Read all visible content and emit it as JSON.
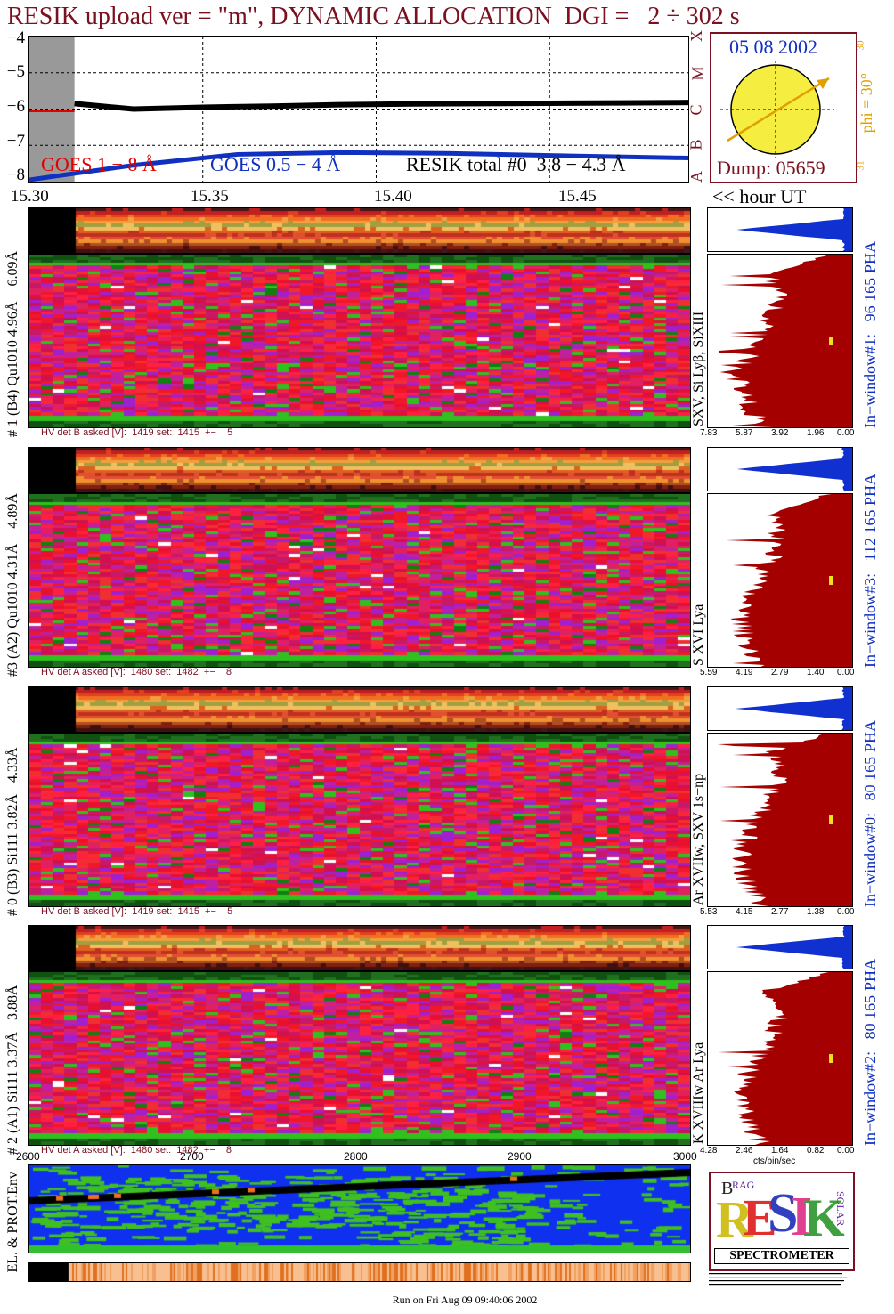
{
  "title": "RESIK upload ver = \"m\", DYNAMIC ALLOCATION  DGI =   2 ÷ 302 s",
  "goes": {
    "y_ticks": [
      "−4",
      "−5",
      "−6",
      "−7",
      "−8"
    ],
    "right_letters": [
      "X",
      "M",
      "C",
      "B",
      "A"
    ],
    "legend_goes_long": "GOES 1 − 8 Å",
    "legend_goes_short": "GOES 0.5 − 4 Å",
    "legend_resik": "RESIK total #0  3.8 − 4.3 Å"
  },
  "sun": {
    "date": "05 08 2002",
    "phi_label": "phi = 30°",
    "top_num": "30",
    "bottom_num": "31",
    "dump": "Dump: 05659"
  },
  "time_axis": {
    "ticks": [
      "15.30",
      "15.35",
      "15.40",
      "15.45"
    ],
    "label": "<< hour UT"
  },
  "channels": [
    {
      "left_label": "# 1 (B4) Qu1010 4.96Å − 6.09Å",
      "lines_label": "SXV, Si Lyβ, SiXIII",
      "window_label": "In−window#1:   96 165",
      "pha": "PHA",
      "hv": "HV det B asked [V]:  1419 set:  1415  +−    5",
      "x_ticks": [
        "7.83",
        "5.87",
        "3.92",
        "1.96",
        "0.00"
      ]
    },
    {
      "left_label": "#3 (A2) Qu1010  4.31Å − 4.89Å",
      "lines_label": "S XVI Lya",
      "window_label": "In−window#3:   112 165",
      "pha": "PHA",
      "hv": "HV det A asked [V]:  1480 set:  1482  +−    8",
      "x_ticks": [
        "5.59",
        "4.19",
        "2.79",
        "1.40",
        "0.00"
      ]
    },
    {
      "left_label": "# 0 (B3) Si111  3.82Å− 4.33Å",
      "lines_label": "Ar XVIIw,  SXV 1s−np",
      "window_label": "In−window#0:   80 165",
      "pha": "PHA",
      "hv": "HV det B asked [V]:  1419 set:  1415  +−    5",
      "x_ticks": [
        "5.53",
        "4.15",
        "2.77",
        "1.38",
        "0.00"
      ]
    },
    {
      "left_label": "# 2 (A1) Si111  3.37Å− 3.88Å",
      "lines_label": "K XVIIIw  Ar Lya",
      "window_label": "In−window#2:   80 165",
      "pha": "PHA",
      "hv": "HV det A asked [V]:  1480 set:  1482  +−    8",
      "x_ticks": [
        "4.28",
        "2.46",
        "1.64",
        "0.82",
        "0.00"
      ],
      "x_unit": "cts/bin/sec"
    }
  ],
  "env": {
    "label": "EL. & PROT.Env",
    "x_ticks": [
      "2600",
      "2700",
      "2800",
      "2900",
      "3000"
    ]
  },
  "logo": {
    "letters": "RESIK",
    "small_letters": [
      "B",
      "R",
      "A",
      "G",
      "S",
      "O",
      "L",
      "A",
      "R"
    ],
    "subtitle": "SPECTROMETER"
  },
  "footer": "Run on Fri Aug 09 09:40:06 2002",
  "colors": {
    "title": "#7a1020",
    "goes_long": "#e00000",
    "goes_short": "#1030c0",
    "sun": "#f5ee40",
    "pha_fill": "#a50000",
    "pha_short_fill": "#1030d0"
  },
  "chart_data": {
    "type": "line",
    "title": "RESIK upload ver = \"m\", DYNAMIC ALLOCATION  DGI =   2 ÷ 302 s",
    "xlabel": "<< hour UT",
    "ylabel": "",
    "xlim": [
      15.3,
      15.49
    ],
    "ylim": [
      -8,
      -4
    ],
    "y_scale": "log",
    "grid": true,
    "series": [
      {
        "name": "GOES 1 − 8 Å",
        "x": [
          15.3,
          15.313
        ],
        "values": [
          -6.05,
          -6.05
        ]
      },
      {
        "name": "GOES 0.5 − 4 Å",
        "x": [
          15.3,
          15.33,
          15.36,
          15.39,
          15.42,
          15.45,
          15.49
        ],
        "values": [
          -7.95,
          -7.55,
          -7.25,
          -7.2,
          -7.22,
          -7.28,
          -7.35
        ]
      },
      {
        "name": "RESIK total #0  3.8 − 4.3 Å",
        "x": [
          15.313,
          15.33,
          15.35,
          15.37,
          15.39,
          15.41,
          15.43,
          15.45,
          15.47,
          15.49
        ],
        "values": [
          -5.85,
          -6.0,
          -5.95,
          -5.92,
          -5.88,
          -5.86,
          -5.85,
          -5.84,
          -5.83,
          -5.82
        ]
      }
    ]
  }
}
